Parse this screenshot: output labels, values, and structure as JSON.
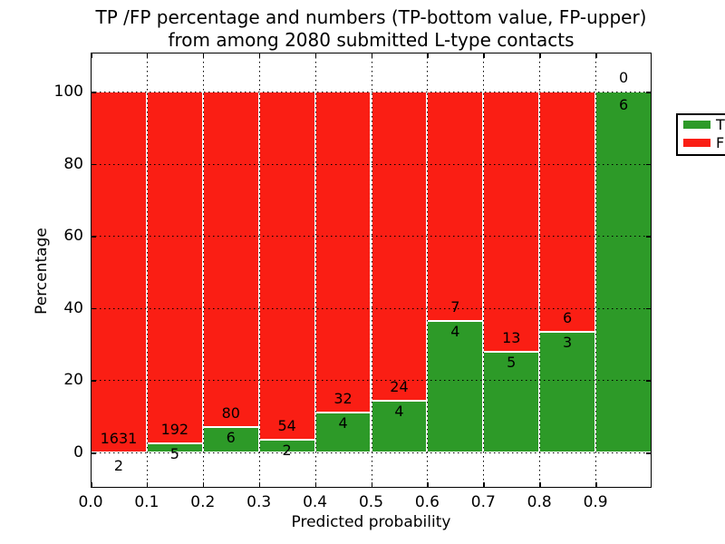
{
  "title": {
    "line1": "TP /FP percentage and numbers (TP-bottom value, FP-upper)",
    "line2": "from among 2080 submitted L-type contacts"
  },
  "x_axis": {
    "label": "Predicted probability",
    "tick_labels": [
      "0.0",
      "0.1",
      "0.2",
      "0.3",
      "0.4",
      "0.5",
      "0.6",
      "0.7",
      "0.8",
      "0.9"
    ]
  },
  "y_axis": {
    "label": "Percentage",
    "tick_labels": [
      "0",
      "20",
      "40",
      "60",
      "80",
      "100"
    ],
    "tick_values": [
      0,
      20,
      40,
      60,
      80,
      100
    ]
  },
  "legend": {
    "items": [
      {
        "label": "TP",
        "color": "#2d9a28"
      },
      {
        "label": "FP",
        "color": "#fa1e14"
      }
    ]
  },
  "colors": {
    "tp_green": "#2d9a28",
    "fp_red": "#fa1e14",
    "background": "#ffffff",
    "text": "#000000"
  },
  "chart_data": {
    "type": "bar",
    "stacked": true,
    "title": "TP /FP percentage and numbers (TP-bottom value, FP-upper) from among 2080 submitted L-type contacts",
    "xlabel": "Predicted probability",
    "ylabel": "Percentage",
    "total_contacts": 2080,
    "x_bin_edges": [
      0.0,
      0.1,
      0.2,
      0.3,
      0.4,
      0.5,
      0.6,
      0.7,
      0.8,
      0.9,
      1.0
    ],
    "series": [
      {
        "name": "TP",
        "counts": [
          2,
          5,
          6,
          2,
          4,
          4,
          4,
          5,
          3,
          6
        ]
      },
      {
        "name": "FP",
        "counts": [
          1631,
          192,
          80,
          54,
          32,
          24,
          7,
          13,
          6,
          0
        ]
      }
    ],
    "tp_percent": [
      0.12,
      2.54,
      6.98,
      3.57,
      11.11,
      14.29,
      36.36,
      27.78,
      33.33,
      100.0
    ],
    "xlim": [
      0.0,
      1.0
    ],
    "ylim": [
      -10.3,
      110.9
    ],
    "grid": true,
    "legend_position": "upper right"
  }
}
